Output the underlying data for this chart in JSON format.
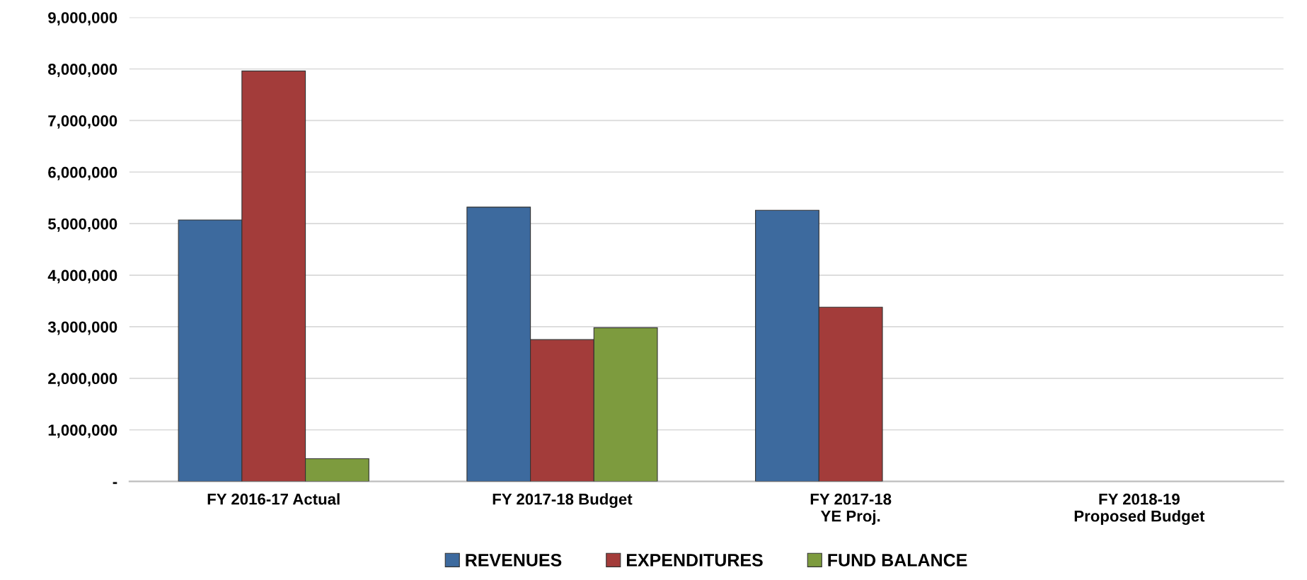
{
  "chart_data": {
    "type": "bar",
    "categories": [
      "FY 2016-17 Actual",
      "FY 2017-18 Budget",
      "FY 2017-18\nYE Proj.",
      "FY 2018-19\nProposed Budget"
    ],
    "series": [
      {
        "name": "REVENUES",
        "color": "#3d6a9e",
        "values": [
          5070000,
          5320000,
          5260000,
          null
        ]
      },
      {
        "name": "EXPENDITURES",
        "color": "#a33c3a",
        "values": [
          7960000,
          2750000,
          3380000,
          null
        ]
      },
      {
        "name": "FUND BALANCE",
        "color": "#7d9b3e",
        "values": [
          440000,
          2980000,
          null,
          null
        ]
      }
    ],
    "ylim": [
      0,
      9000000
    ],
    "yticks": [
      {
        "value": 0,
        "label": "-"
      },
      {
        "value": 1000000,
        "label": "1,000,000"
      },
      {
        "value": 2000000,
        "label": "2,000,000"
      },
      {
        "value": 3000000,
        "label": "3,000,000"
      },
      {
        "value": 4000000,
        "label": "4,000,000"
      },
      {
        "value": 5000000,
        "label": "5,000,000"
      },
      {
        "value": 6000000,
        "label": "6,000,000"
      },
      {
        "value": 7000000,
        "label": "7,000,000"
      },
      {
        "value": 8000000,
        "label": "8,000,000"
      },
      {
        "value": 9000000,
        "label": "9,000,000"
      }
    ],
    "grid": "y",
    "legend": "bottom"
  }
}
